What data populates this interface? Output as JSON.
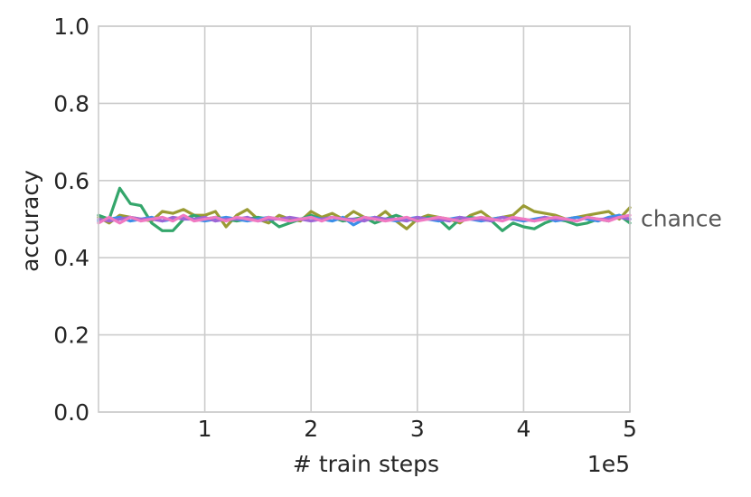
{
  "chart_data": {
    "type": "line",
    "title": "",
    "xlabel": "# train steps",
    "ylabel": "accuracy",
    "x_offset_label": "1e5",
    "xlim": [
      0.0,
      500000
    ],
    "ylim": [
      0.0,
      1.0
    ],
    "x_ticks": [
      100000,
      200000,
      300000,
      400000,
      500000
    ],
    "x_tick_labels": [
      "1",
      "2",
      "3",
      "4",
      "5"
    ],
    "y_ticks": [
      0.0,
      0.2,
      0.4,
      0.6,
      0.8,
      1.0
    ],
    "y_tick_labels": [
      "0.0",
      "0.2",
      "0.4",
      "0.6",
      "0.8",
      "1.0"
    ],
    "grid": true,
    "legend": "none",
    "reference_label": "chance",
    "reference_value": 0.5,
    "x": [
      0,
      10000,
      20000,
      30000,
      40000,
      50000,
      60000,
      70000,
      80000,
      90000,
      100000,
      110000,
      120000,
      130000,
      140000,
      150000,
      160000,
      170000,
      180000,
      190000,
      200000,
      210000,
      220000,
      230000,
      240000,
      250000,
      260000,
      270000,
      280000,
      290000,
      300000,
      310000,
      320000,
      330000,
      340000,
      350000,
      360000,
      370000,
      380000,
      390000,
      400000,
      410000,
      420000,
      430000,
      440000,
      450000,
      460000,
      470000,
      480000,
      490000,
      500000
    ],
    "series": [
      {
        "color": "#9a9b34",
        "values": [
          0.505,
          0.49,
          0.51,
          0.505,
          0.5,
          0.495,
          0.52,
          0.515,
          0.525,
          0.51,
          0.51,
          0.52,
          0.48,
          0.51,
          0.525,
          0.5,
          0.49,
          0.51,
          0.5,
          0.495,
          0.52,
          0.505,
          0.515,
          0.5,
          0.52,
          0.505,
          0.5,
          0.52,
          0.495,
          0.475,
          0.5,
          0.51,
          0.505,
          0.5,
          0.49,
          0.51,
          0.52,
          0.5,
          0.505,
          0.51,
          0.535,
          0.52,
          0.515,
          0.51,
          0.5,
          0.505,
          0.51,
          0.515,
          0.52,
          0.5,
          0.53
        ]
      },
      {
        "color": "#34a66b",
        "values": [
          0.51,
          0.5,
          0.58,
          0.54,
          0.535,
          0.49,
          0.47,
          0.47,
          0.5,
          0.51,
          0.5,
          0.505,
          0.5,
          0.495,
          0.5,
          0.505,
          0.5,
          0.48,
          0.49,
          0.5,
          0.51,
          0.5,
          0.505,
          0.495,
          0.5,
          0.505,
          0.49,
          0.5,
          0.51,
          0.5,
          0.495,
          0.505,
          0.5,
          0.475,
          0.5,
          0.505,
          0.5,
          0.495,
          0.47,
          0.49,
          0.48,
          0.475,
          0.49,
          0.5,
          0.495,
          0.485,
          0.49,
          0.5,
          0.495,
          0.51,
          0.49
        ]
      },
      {
        "color": "#3b8fe8",
        "values": [
          0.495,
          0.5,
          0.505,
          0.495,
          0.5,
          0.505,
          0.495,
          0.5,
          0.505,
          0.5,
          0.495,
          0.5,
          0.505,
          0.5,
          0.495,
          0.5,
          0.505,
          0.5,
          0.495,
          0.5,
          0.505,
          0.5,
          0.495,
          0.505,
          0.485,
          0.5,
          0.505,
          0.5,
          0.495,
          0.5,
          0.505,
          0.5,
          0.495,
          0.5,
          0.505,
          0.5,
          0.495,
          0.5,
          0.505,
          0.5,
          0.495,
          0.5,
          0.505,
          0.495,
          0.5,
          0.505,
          0.5,
          0.495,
          0.505,
          0.51,
          0.5
        ]
      },
      {
        "color": "#9c66d6",
        "values": [
          0.5,
          0.495,
          0.5,
          0.505,
          0.5,
          0.5,
          0.495,
          0.505,
          0.5,
          0.5,
          0.505,
          0.495,
          0.5,
          0.5,
          0.505,
          0.495,
          0.5,
          0.5,
          0.505,
          0.5,
          0.495,
          0.5,
          0.505,
          0.5,
          0.5,
          0.495,
          0.505,
          0.5,
          0.5,
          0.495,
          0.505,
          0.5,
          0.5,
          0.495,
          0.505,
          0.5,
          0.5,
          0.495,
          0.505,
          0.5,
          0.5,
          0.495,
          0.505,
          0.5,
          0.5,
          0.495,
          0.505,
          0.5,
          0.5,
          0.505,
          0.5
        ]
      },
      {
        "color": "#f07ac2",
        "values": [
          0.49,
          0.505,
          0.49,
          0.505,
          0.495,
          0.5,
          0.505,
          0.495,
          0.51,
          0.495,
          0.5,
          0.505,
          0.495,
          0.505,
          0.5,
          0.495,
          0.505,
          0.5,
          0.495,
          0.5,
          0.505,
          0.495,
          0.505,
          0.5,
          0.495,
          0.505,
          0.5,
          0.495,
          0.5,
          0.505,
          0.495,
          0.5,
          0.505,
          0.5,
          0.495,
          0.5,
          0.505,
          0.5,
          0.495,
          0.505,
          0.5,
          0.495,
          0.5,
          0.505,
          0.5,
          0.495,
          0.505,
          0.5,
          0.495,
          0.505,
          0.51
        ]
      }
    ]
  }
}
